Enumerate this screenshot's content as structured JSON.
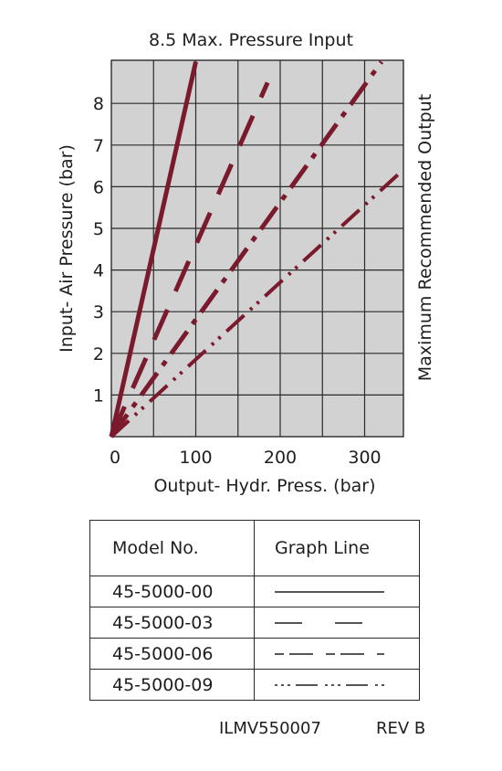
{
  "chart_data": {
    "type": "line",
    "title": "8.5 Max. Pressure Input",
    "xlabel": "Output- Hydr. Press. (bar)",
    "ylabel": "Input- Air Pressure (bar)",
    "right_label": "Maximum Recommended Output",
    "xlim": [
      0,
      345
    ],
    "ylim": [
      0,
      9
    ],
    "x_ticks": [
      0,
      100,
      200,
      300
    ],
    "y_ticks": [
      1,
      2,
      3,
      4,
      5,
      6,
      7,
      8
    ],
    "grid": true,
    "series": [
      {
        "name": "45-5000-00",
        "style": "solid",
        "x": [
          0,
          100
        ],
        "y": [
          0,
          9
        ]
      },
      {
        "name": "45-5000-03",
        "style": "dash",
        "x": [
          0,
          185
        ],
        "y": [
          0,
          8.5
        ]
      },
      {
        "name": "45-5000-06",
        "style": "dashdot",
        "x": [
          0,
          320
        ],
        "y": [
          0,
          9
        ]
      },
      {
        "name": "45-5000-09",
        "style": "dashdotdot",
        "x": [
          0,
          340
        ],
        "y": [
          0,
          6.3
        ]
      }
    ],
    "colors": {
      "series": "#7a1a2c",
      "plot_bg": "#d2d2d2",
      "grid": "#2a2a2a"
    }
  },
  "table": {
    "headers": [
      "Model No.",
      "Graph Line"
    ],
    "rows": [
      {
        "model": "45-5000-00",
        "style": "solid"
      },
      {
        "model": "45-5000-03",
        "style": "dash"
      },
      {
        "model": "45-5000-06",
        "style": "dashdot"
      },
      {
        "model": "45-5000-09",
        "style": "dashdotdot"
      }
    ]
  },
  "footer": {
    "doc_id": "ILMV550007",
    "rev": "REV B"
  }
}
